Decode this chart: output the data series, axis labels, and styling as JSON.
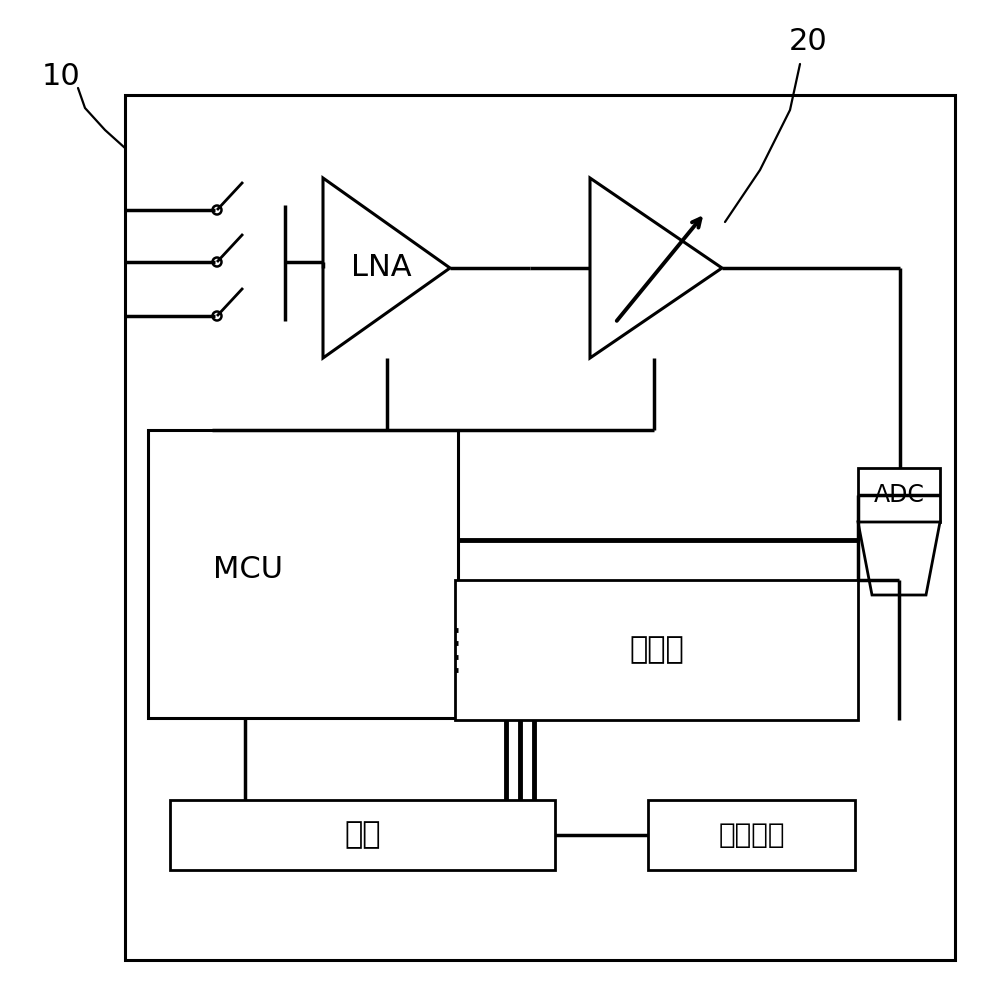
{
  "bg_color": "#ffffff",
  "line_color": "#000000",
  "label_10": "10",
  "label_20": "20",
  "lna_label": "LNA",
  "mcu_label": "MCU",
  "adc_label": "ADC",
  "memory_label": "存储器",
  "bus_label": "总线",
  "bluetooth_label": "蓝牙模块",
  "font_size_large": 22,
  "font_size_med": 20,
  "font_size_small": 17
}
